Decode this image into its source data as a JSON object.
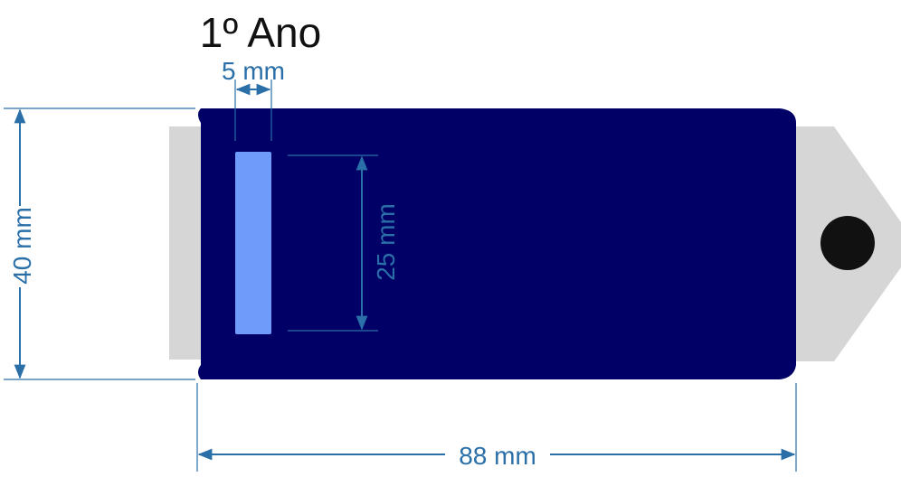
{
  "title": "1º Ano",
  "dimensions": {
    "stripe_width": "5 mm",
    "stripe_height": "25 mm",
    "tag_height": "40 mm",
    "tag_width": "88 mm"
  },
  "colors": {
    "tag_body": "#000066",
    "stripe": "#6f9bfb",
    "clip": "#d6d6d6",
    "dimension": "#2a6fa8",
    "hole": "#111111",
    "title": "#111111"
  },
  "icons": {
    "hole": "circle-hole-icon"
  }
}
